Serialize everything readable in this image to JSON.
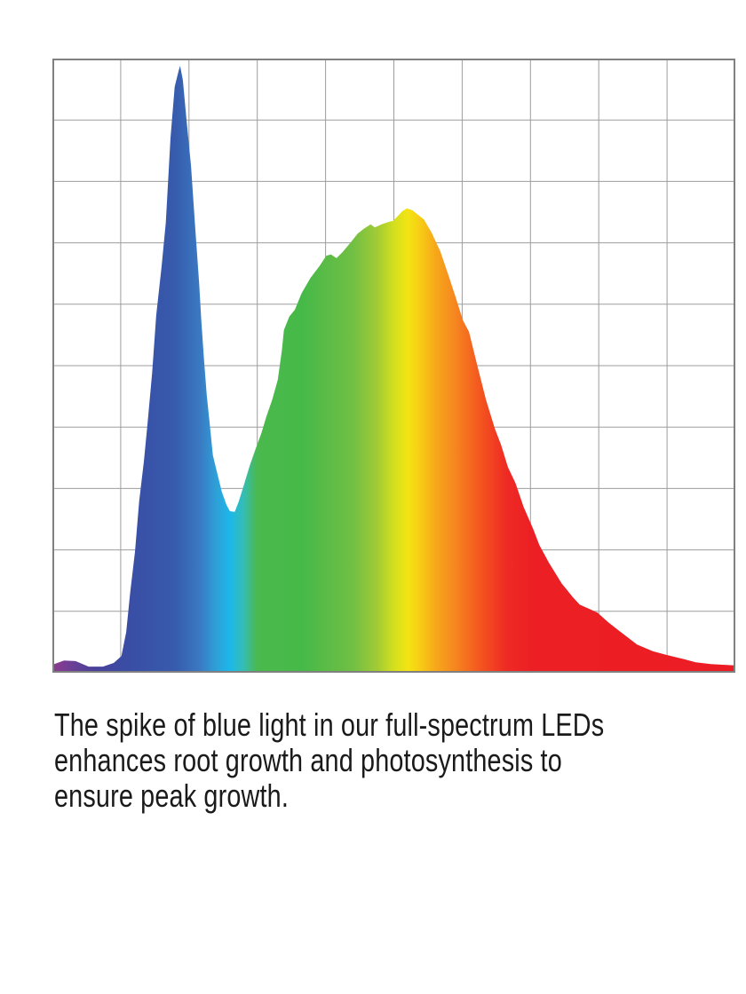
{
  "colors": {
    "page_background": "#ffffff",
    "grid_line": "#9d9d9d",
    "chart_border": "#808080",
    "caption_text": "#1a1a1a"
  },
  "chart_data": {
    "type": "area",
    "title": "",
    "xlabel": "",
    "ylabel": "",
    "tick_labels": [],
    "legend": "none",
    "grid": {
      "visible": true,
      "columns": 10,
      "rows": 10
    },
    "x_range_pct": [
      0,
      100
    ],
    "y_range_pct": [
      0,
      100
    ],
    "series": [
      {
        "name": "Full-spectrum LED output (blue spike at ~19% of axis, broad green-red hump peaking at ~52%)",
        "fill": "spectrum-gradient",
        "points": [
          [
            0.0,
            1.3
          ],
          [
            1.7,
            2.0
          ],
          [
            3.4,
            1.9
          ],
          [
            5.3,
            1.0
          ],
          [
            7.4,
            1.0
          ],
          [
            9.0,
            1.6
          ],
          [
            10.1,
            2.7
          ],
          [
            10.8,
            6.6
          ],
          [
            11.4,
            13.2
          ],
          [
            12.1,
            19.7
          ],
          [
            12.7,
            27.9
          ],
          [
            13.4,
            34.4
          ],
          [
            13.9,
            40.2
          ],
          [
            14.6,
            48.8
          ],
          [
            15.2,
            58.2
          ],
          [
            16.0,
            66.2
          ],
          [
            16.6,
            73.3
          ],
          [
            17.3,
            87.1
          ],
          [
            17.9,
            95.4
          ],
          [
            18.5,
            98.1
          ],
          [
            18.7,
            98.8
          ],
          [
            19.1,
            96.5
          ],
          [
            19.6,
            90.5
          ],
          [
            20.3,
            82.5
          ],
          [
            20.9,
            72.7
          ],
          [
            21.5,
            63.3
          ],
          [
            21.8,
            57.5
          ],
          [
            22.2,
            51.0
          ],
          [
            22.6,
            45.2
          ],
          [
            23.0,
            40.9
          ],
          [
            23.5,
            35.4
          ],
          [
            24.2,
            32.2
          ],
          [
            24.8,
            29.5
          ],
          [
            25.5,
            27.3
          ],
          [
            26.0,
            26.3
          ],
          [
            26.7,
            26.2
          ],
          [
            27.3,
            27.9
          ],
          [
            28.1,
            30.8
          ],
          [
            28.9,
            33.7
          ],
          [
            29.8,
            36.6
          ],
          [
            30.6,
            39.0
          ],
          [
            31.3,
            41.6
          ],
          [
            32.2,
            44.5
          ],
          [
            33.0,
            47.7
          ],
          [
            33.6,
            52.5
          ],
          [
            33.9,
            55.8
          ],
          [
            34.7,
            58.0
          ],
          [
            35.5,
            59.1
          ],
          [
            36.5,
            61.8
          ],
          [
            37.8,
            64.3
          ],
          [
            39.1,
            66.2
          ],
          [
            40.1,
            67.9
          ],
          [
            40.8,
            68.1
          ],
          [
            41.6,
            67.5
          ],
          [
            42.5,
            68.5
          ],
          [
            43.7,
            70.1
          ],
          [
            44.7,
            71.5
          ],
          [
            45.6,
            72.3
          ],
          [
            46.6,
            73.0
          ],
          [
            47.2,
            72.5
          ],
          [
            48.2,
            73.0
          ],
          [
            49.2,
            73.4
          ],
          [
            49.9,
            73.6
          ],
          [
            50.6,
            74.4
          ],
          [
            51.2,
            75.1
          ],
          [
            51.9,
            75.6
          ],
          [
            52.7,
            75.3
          ],
          [
            53.4,
            74.7
          ],
          [
            54.4,
            73.8
          ],
          [
            55.5,
            71.7
          ],
          [
            56.8,
            68.6
          ],
          [
            58.0,
            64.7
          ],
          [
            59.0,
            61.3
          ],
          [
            60.1,
            57.4
          ],
          [
            61.0,
            55.5
          ],
          [
            62.2,
            50.1
          ],
          [
            63.5,
            44.4
          ],
          [
            64.8,
            39.7
          ],
          [
            65.7,
            37.1
          ],
          [
            66.7,
            33.5
          ],
          [
            67.8,
            30.9
          ],
          [
            69.0,
            27.0
          ],
          [
            70.4,
            23.4
          ],
          [
            71.3,
            20.8
          ],
          [
            72.7,
            17.9
          ],
          [
            74.6,
            14.5
          ],
          [
            76.2,
            12.3
          ],
          [
            77.2,
            11.1
          ],
          [
            78.8,
            10.3
          ],
          [
            79.8,
            9.8
          ],
          [
            81.4,
            8.2
          ],
          [
            83.0,
            6.8
          ],
          [
            85.6,
            4.6
          ],
          [
            87.9,
            3.5
          ],
          [
            89.9,
            2.9
          ],
          [
            92.5,
            2.2
          ],
          [
            94.2,
            1.7
          ],
          [
            96.4,
            1.4
          ],
          [
            98.1,
            1.3
          ],
          [
            100.0,
            1.2
          ]
        ]
      }
    ],
    "gradient_stops": [
      [
        0,
        "#8e3a8e"
      ],
      [
        2.6,
        "#6e3f96"
      ],
      [
        6,
        "#4a4099"
      ],
      [
        10.5,
        "#3a4ca4"
      ],
      [
        18,
        "#375bad"
      ],
      [
        21.5,
        "#3a78c2"
      ],
      [
        24,
        "#2ea0d8"
      ],
      [
        26,
        "#1cb8ea"
      ],
      [
        28,
        "#35bdb4"
      ],
      [
        30,
        "#4bb94d"
      ],
      [
        36.5,
        "#45b948"
      ],
      [
        44,
        "#71bf44"
      ],
      [
        47.5,
        "#a0cb35"
      ],
      [
        50,
        "#d3df1f"
      ],
      [
        52,
        "#f2e414"
      ],
      [
        53.5,
        "#f7d214"
      ],
      [
        56,
        "#f7a91a"
      ],
      [
        58.5,
        "#f68c1f"
      ],
      [
        62.5,
        "#f4571f"
      ],
      [
        66.5,
        "#ee2a24"
      ],
      [
        70,
        "#ec2024"
      ],
      [
        100,
        "#ec1c24"
      ]
    ]
  },
  "caption": {
    "text": "The spike of blue light in our full-spectrum LEDs enhances root growth and photosynthesis to ensure peak growth.",
    "lines": [
      "The spike of blue light in our full-spectrum LEDs",
      "enhances root growth and photosynthesis to",
      "ensure peak growth."
    ]
  }
}
